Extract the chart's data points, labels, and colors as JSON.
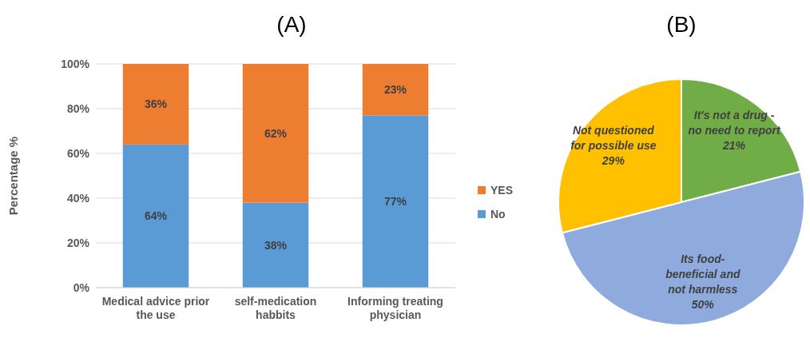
{
  "chart_data": [
    {
      "type": "bar",
      "title": "(A)",
      "ylabel": "Percentage %",
      "categories": [
        "Medical advice prior\nthe use",
        "self-medication\nhabbits",
        "Informing treating\nphysician"
      ],
      "stacked": true,
      "series": [
        {
          "name": "No",
          "color": "#5b9bd5",
          "values": [
            64,
            38,
            77
          ],
          "value_labels": [
            "64%",
            "38%",
            "77%"
          ]
        },
        {
          "name": "YES",
          "color": "#ed7d31",
          "values": [
            36,
            62,
            23
          ],
          "value_labels": [
            "36%",
            "62%",
            "23%"
          ]
        }
      ],
      "ylim": [
        0,
        100
      ],
      "yticks": [
        {
          "value": 0,
          "label": "0%"
        },
        {
          "value": 20,
          "label": "20%"
        },
        {
          "value": 40,
          "label": "40%"
        },
        {
          "value": 60,
          "label": "60%"
        },
        {
          "value": 80,
          "label": "80%"
        },
        {
          "value": 100,
          "label": "100%"
        }
      ],
      "grid": "y",
      "legend": "right"
    },
    {
      "type": "pie",
      "title": "(B)",
      "categories": [
        "It's not a drug -\nno need to report",
        "Its food-\nbeneficial and\nnot harmless",
        "Not questioned\nfor possible use"
      ],
      "values": [
        21,
        50,
        29
      ],
      "colors": [
        "#70ad47",
        "#8faadc",
        "#ffc000"
      ],
      "value_labels": [
        "21%",
        "50%",
        "29%"
      ]
    }
  ]
}
